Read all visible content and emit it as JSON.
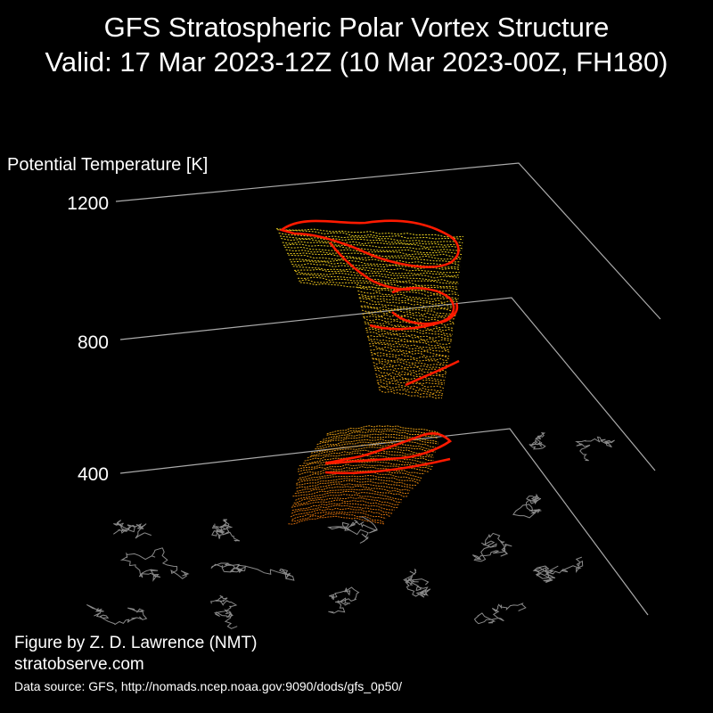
{
  "chart_data": {
    "type": "3d-isosurface",
    "title": "GFS Stratospheric Polar Vortex Structure",
    "subtitle": "Valid: 17 Mar 2023-12Z  (10 Mar 2023-00Z, FH180)",
    "zlabel": "Potential Temperature [K]",
    "z_ticks": [
      1200,
      800,
      400
    ],
    "colors": {
      "background": "#000000",
      "axes": "#aaaaaa",
      "edge": "#ff1a00",
      "low": "#d46a0a",
      "mid": "#e09a14",
      "high": "#e8d020",
      "coast": "#8a8a8a"
    }
  },
  "footer": {
    "line1": "Figure by Z. D. Lawrence (NMT)",
    "line2": "stratobserve.com",
    "line3": "Data source: GFS, http://nomads.ncep.noaa.gov:9090/dods/gfs_0p50/"
  }
}
